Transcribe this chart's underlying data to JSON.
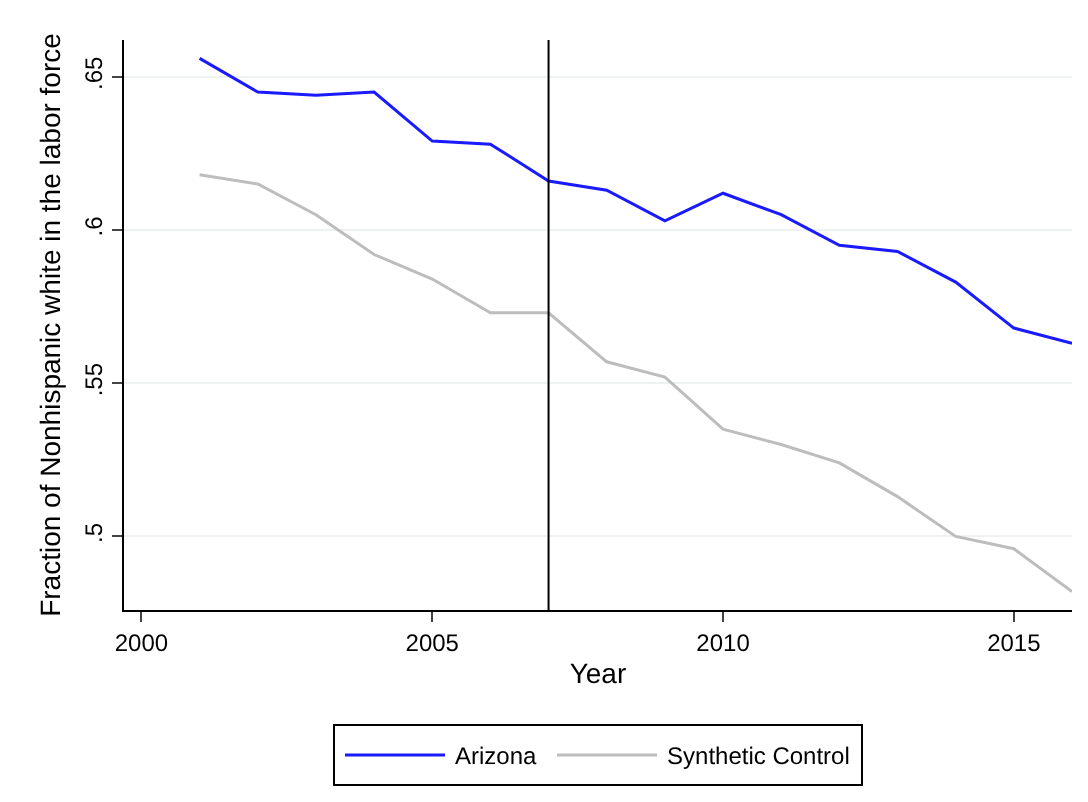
{
  "chart_data": {
    "type": "line",
    "xlabel": "Year",
    "ylabel": "Fraction of Nonhispanic white in the labor force",
    "x": [
      2001,
      2002,
      2003,
      2004,
      2005,
      2006,
      2007,
      2008,
      2009,
      2010,
      2011,
      2012,
      2013,
      2014,
      2015,
      2016
    ],
    "series": [
      {
        "name": "Arizona",
        "color": "#1a1aff",
        "values": [
          0.656,
          0.645,
          0.644,
          0.645,
          0.629,
          0.628,
          0.616,
          0.613,
          0.603,
          0.612,
          0.605,
          0.595,
          0.593,
          0.583,
          0.568,
          0.563
        ]
      },
      {
        "name": "Synthetic Control",
        "color": "#bdbdbd",
        "values": [
          0.618,
          0.615,
          0.605,
          0.592,
          0.584,
          0.573,
          0.573,
          0.557,
          0.552,
          0.535,
          0.53,
          0.524,
          0.513,
          0.5,
          0.496,
          0.482
        ]
      }
    ],
    "xlim": [
      1999.7,
      2016
    ],
    "xticks": [
      2000,
      2005,
      2010,
      2015
    ],
    "ylim": [
      0.476,
      0.662
    ],
    "yticks": [
      {
        "value": 0.5,
        "label": ".5"
      },
      {
        "value": 0.55,
        "label": ".55"
      },
      {
        "value": 0.6,
        "label": ".6"
      },
      {
        "value": 0.65,
        "label": ".65"
      }
    ],
    "grid": "y",
    "legend": "bottom",
    "marker": "none",
    "line_style": "solid",
    "ref_lines": [
      {
        "axis": "x",
        "value": 2007,
        "label": null,
        "color": "#000000"
      }
    ]
  }
}
